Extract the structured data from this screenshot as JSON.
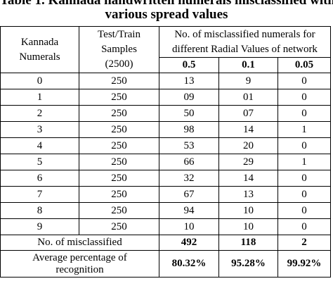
{
  "caption": {
    "line1": "Table 1. Kannada handwritten numerals misclassified with",
    "line2": "various spread values"
  },
  "header": {
    "numerals_line1": "Kannada",
    "numerals_line2": "Numerals",
    "samples_line1": "Test/Train",
    "samples_line2": "Samples",
    "samples_line3": "(2500)",
    "misclassified_line1": "No. of misclassified numerals for",
    "misclassified_line2": "different Radial Values of network",
    "radial_values": [
      "0.5",
      "0.1",
      "0.05"
    ]
  },
  "rows": [
    {
      "numeral": "0",
      "samples": "250",
      "v05": "13",
      "v01": "9",
      "v005": "0"
    },
    {
      "numeral": "1",
      "samples": "250",
      "v05": "09",
      "v01": "01",
      "v005": "0"
    },
    {
      "numeral": "2",
      "samples": "250",
      "v05": "50",
      "v01": "07",
      "v005": "0"
    },
    {
      "numeral": "3",
      "samples": "250",
      "v05": "98",
      "v01": "14",
      "v005": "1"
    },
    {
      "numeral": "4",
      "samples": "250",
      "v05": "53",
      "v01": "20",
      "v005": "0"
    },
    {
      "numeral": "5",
      "samples": "250",
      "v05": "66",
      "v01": "29",
      "v005": "1"
    },
    {
      "numeral": "6",
      "samples": "250",
      "v05": "32",
      "v01": "14",
      "v005": "0"
    },
    {
      "numeral": "7",
      "samples": "250",
      "v05": "67",
      "v01": "13",
      "v005": "0"
    },
    {
      "numeral": "8",
      "samples": "250",
      "v05": "94",
      "v01": "10",
      "v005": "0"
    },
    {
      "numeral": "9",
      "samples": "250",
      "v05": "10",
      "v01": "10",
      "v005": "0"
    }
  ],
  "totals": {
    "label": "No. of misclassified",
    "v05": "492",
    "v01": "118",
    "v005": "2"
  },
  "average": {
    "label_line1": "Average percentage of",
    "label_line2": "recognition",
    "v05": "80.32%",
    "v01": "95.28%",
    "v005": "99.92%"
  }
}
